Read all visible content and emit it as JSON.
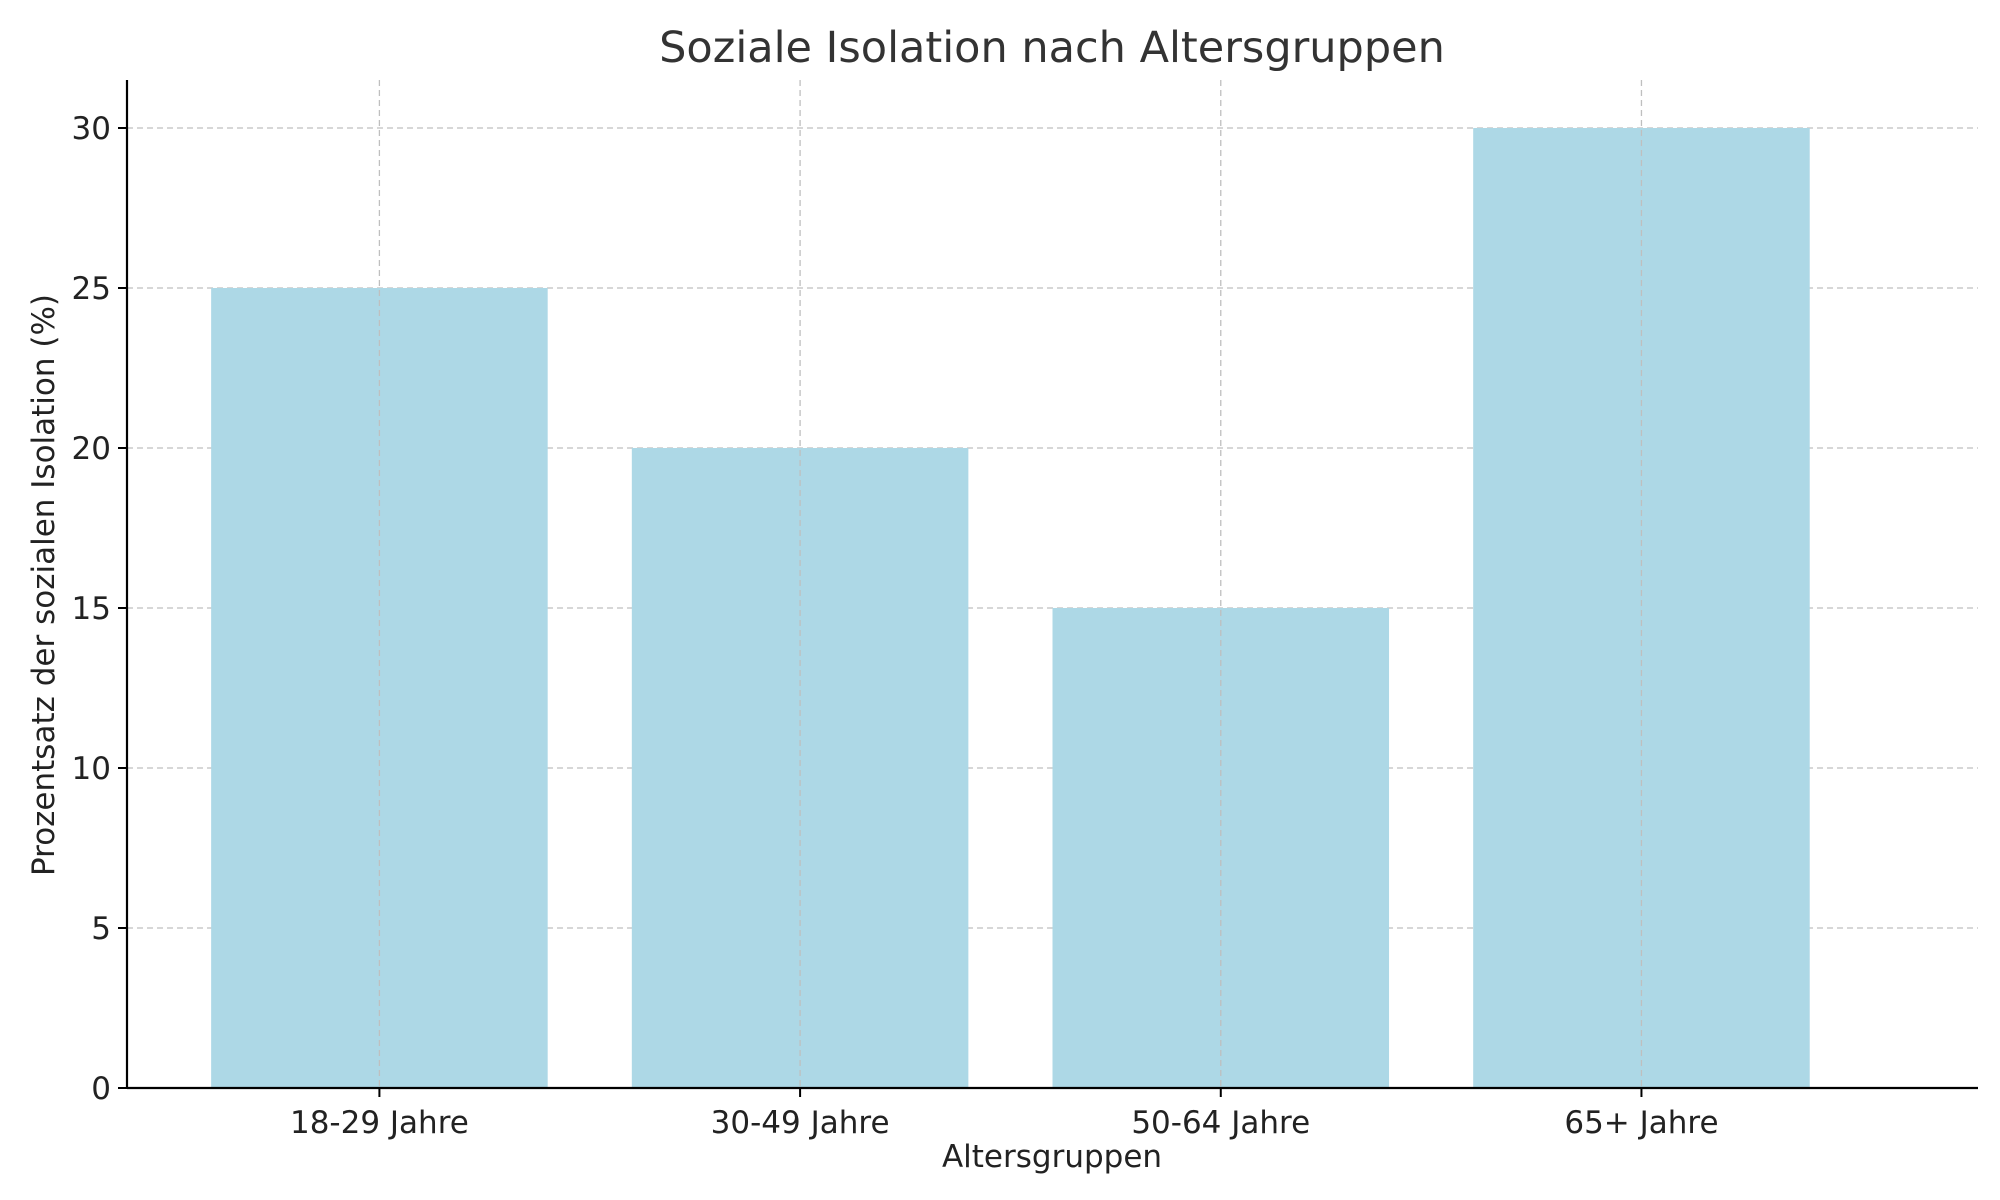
{
  "chart_data": {
    "type": "bar",
    "title": "Soziale Isolation nach Altersgruppen",
    "xlabel": "Altersgruppen",
    "ylabel": "Prozentsatz der sozialen Isolation (%)",
    "categories": [
      "18-29 Jahre",
      "30-49 Jahre",
      "50-64 Jahre",
      "65+ Jahre"
    ],
    "values": [
      25,
      20,
      15,
      30
    ],
    "ylim": [
      0,
      31.5
    ],
    "yticks": [
      0,
      5,
      10,
      15,
      20,
      25,
      30
    ],
    "grid": true,
    "bar_color": "#add8e6"
  }
}
